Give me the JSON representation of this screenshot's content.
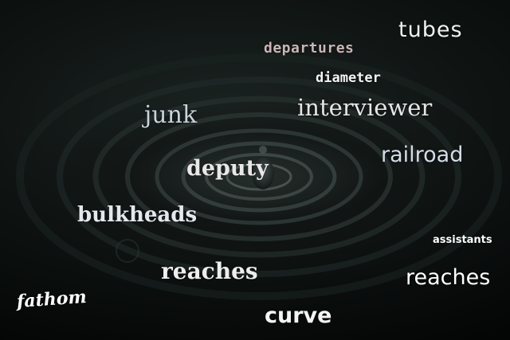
{
  "scene": {
    "description_colors": {
      "water_dark": "#0b0f0e",
      "water_highlight": "#2a3331"
    }
  },
  "words": {
    "tubes": "tubes",
    "departures": "departures",
    "diameter": "diameter",
    "junk": "junk",
    "interviewer": "interviewer",
    "railroad": "railroad",
    "deputy": "deputy",
    "bulkheads": "bulkheads",
    "assistants": "assistants",
    "reaches_1": "reaches",
    "reaches_2": "reaches",
    "fathom": "fathom",
    "curve": "curve"
  }
}
